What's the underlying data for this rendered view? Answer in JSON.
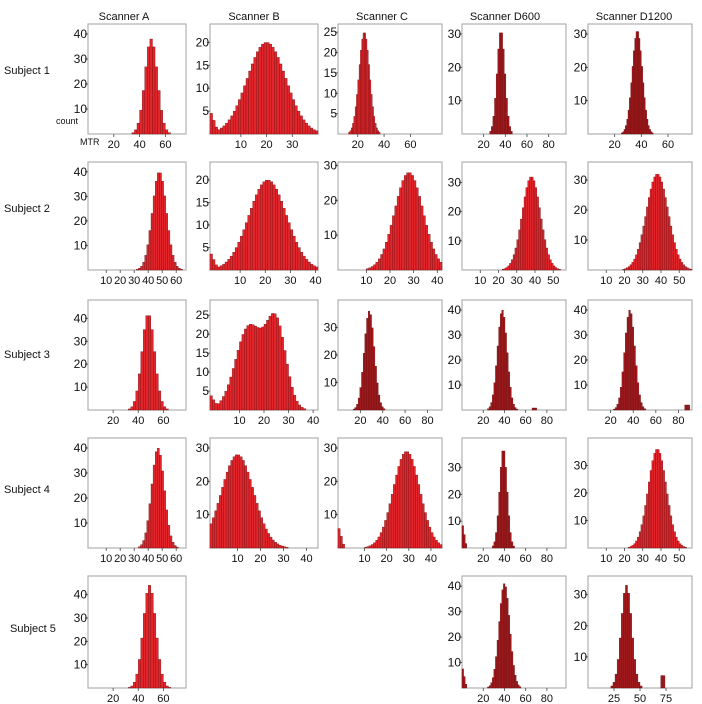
{
  "column_headers": [
    "Scanner   A",
    "Scanner   B",
    "Scanner   C",
    "Scanner    D600",
    "Scanner    D1200"
  ],
  "row_headers": [
    "Subject 1",
    "Subject 2",
    "Subject 3",
    "Subject 4",
    "Subject 5"
  ],
  "axis_words": {
    "x": "MTR",
    "y": "count"
  },
  "colors": {
    "bright_bar": "#e3262b",
    "dark_bar": "#9e1a1d",
    "bar_edge": "#6d0b0e",
    "frame": "#b0b0b0"
  },
  "chart_data": [
    {
      "type": "bar",
      "row": 0,
      "col": 0,
      "bin": 2,
      "xlim": [
        0,
        76
      ],
      "ylim": [
        0,
        44
      ],
      "xticks": [
        20,
        40,
        60
      ],
      "yticks": [
        10,
        20,
        30,
        40
      ],
      "dark": false,
      "peaks": [
        {
          "mu": 49,
          "sd": 4.8,
          "amp": 38
        }
      ],
      "floor": 0
    },
    {
      "type": "bar",
      "row": 0,
      "col": 1,
      "bin": 1,
      "xlim": [
        -2,
        40
      ],
      "ylim": [
        0,
        24
      ],
      "xticks": [
        10,
        20,
        30
      ],
      "yticks": [
        5,
        10,
        15,
        20
      ],
      "dark": false,
      "peaks": [
        {
          "mu": 20,
          "sd": 7.5,
          "amp": 20
        }
      ],
      "floor": 0,
      "lowspike": 5
    },
    {
      "type": "bar",
      "row": 0,
      "col": 2,
      "bin": 1,
      "xlim": [
        5,
        84
      ],
      "ylim": [
        0,
        27
      ],
      "xticks": [
        20,
        40,
        60
      ],
      "yticks": [
        5,
        10,
        15,
        20,
        25
      ],
      "dark": false,
      "peaks": [
        {
          "mu": 25,
          "sd": 4,
          "amp": 25
        }
      ],
      "floor": 0
    },
    {
      "type": "bar",
      "row": 0,
      "col": 3,
      "bin": 1.5,
      "xlim": [
        0,
        96
      ],
      "ylim": [
        0,
        33
      ],
      "xticks": [
        20,
        40,
        60,
        80
      ],
      "yticks": [
        10,
        20,
        30
      ],
      "dark": true,
      "peaks": [
        {
          "mu": 36,
          "sd": 3.6,
          "amp": 31
        }
      ],
      "floor": 0
    },
    {
      "type": "bar",
      "row": 0,
      "col": 4,
      "bin": 1,
      "xlim": [
        0,
        78
      ],
      "ylim": [
        0,
        33
      ],
      "xticks": [
        20,
        40,
        60
      ],
      "yticks": [
        10,
        20,
        30
      ],
      "dark": true,
      "peaks": [
        {
          "mu": 37,
          "sd": 3.8,
          "amp": 31
        }
      ],
      "floor": 0
    },
    {
      "type": "bar",
      "row": 1,
      "col": 0,
      "bin": 1.5,
      "xlim": [
        -3,
        67
      ],
      "ylim": [
        0,
        44
      ],
      "xticks": [
        10,
        20,
        30,
        40,
        50,
        60
      ],
      "yticks": [
        10,
        20,
        30,
        40
      ],
      "dark": false,
      "peaks": [
        {
          "mu": 48,
          "sd": 5,
          "amp": 40
        }
      ],
      "floor": 0
    },
    {
      "type": "bar",
      "row": 1,
      "col": 1,
      "bin": 1,
      "xlim": [
        -2,
        41
      ],
      "ylim": [
        0,
        24
      ],
      "xticks": [
        10,
        20,
        30,
        40
      ],
      "yticks": [
        5,
        10,
        15,
        20
      ],
      "dark": false,
      "peaks": [
        {
          "mu": 21,
          "sd": 7.5,
          "amp": 20
        }
      ],
      "floor": 0,
      "lowspike": 4
    },
    {
      "type": "bar",
      "row": 1,
      "col": 2,
      "bin": 1,
      "xlim": [
        -2,
        42
      ],
      "ylim": [
        0,
        31
      ],
      "xticks": [
        10,
        20,
        30,
        40
      ],
      "yticks": [
        10,
        20,
        30
      ],
      "dark": false,
      "peaks": [
        {
          "mu": 28,
          "sd": 6,
          "amp": 28
        }
      ],
      "floor": 0
    },
    {
      "type": "bar",
      "row": 1,
      "col": 3,
      "bin": 1,
      "xlim": [
        0,
        57
      ],
      "ylim": [
        0,
        37
      ],
      "xticks": [
        10,
        20,
        30,
        40,
        50
      ],
      "yticks": [
        10,
        20,
        30
      ],
      "dark": false,
      "peaks": [
        {
          "mu": 38,
          "sd": 5,
          "amp": 32
        }
      ],
      "floor": 0
    },
    {
      "type": "bar",
      "row": 1,
      "col": 4,
      "bin": 1,
      "xlim": [
        0,
        57
      ],
      "ylim": [
        0,
        36
      ],
      "xticks": [
        10,
        20,
        30,
        40,
        50
      ],
      "yticks": [
        10,
        20,
        30
      ],
      "dark": false,
      "peaks": [
        {
          "mu": 38,
          "sd": 6,
          "amp": 32
        }
      ],
      "floor": 0
    },
    {
      "type": "bar",
      "row": 2,
      "col": 0,
      "bin": 2,
      "xlim": [
        0,
        78
      ],
      "ylim": [
        0,
        48
      ],
      "xticks": [
        20,
        40,
        60
      ],
      "yticks": [
        10,
        20,
        30,
        40
      ],
      "dark": false,
      "peaks": [
        {
          "mu": 48,
          "sd": 5,
          "amp": 42
        }
      ],
      "floor": 0
    },
    {
      "type": "bar",
      "row": 2,
      "col": 1,
      "bin": 1,
      "xlim": [
        -2,
        42
      ],
      "ylim": [
        0,
        29
      ],
      "xticks": [
        10,
        20,
        30,
        40
      ],
      "yticks": [
        5,
        10,
        15,
        20,
        25
      ],
      "dark": false,
      "peaks": [
        {
          "mu": 14,
          "sd": 5.5,
          "amp": 22
        },
        {
          "mu": 25,
          "sd": 4,
          "amp": 22
        }
      ],
      "floor": 0,
      "lowspike": 4
    },
    {
      "type": "bar",
      "row": 2,
      "col": 2,
      "bin": 1.5,
      "xlim": [
        0,
        93
      ],
      "ylim": [
        0,
        40
      ],
      "xticks": [
        20,
        40,
        60,
        80
      ],
      "yticks": [
        10,
        20,
        30
      ],
      "dark": true,
      "peaks": [
        {
          "mu": 28,
          "sd": 4.5,
          "amp": 36
        }
      ],
      "floor": 0
    },
    {
      "type": "bar",
      "row": 2,
      "col": 3,
      "bin": 1.5,
      "xlim": [
        0,
        98
      ],
      "ylim": [
        0,
        44
      ],
      "xticks": [
        20,
        40,
        60,
        80
      ],
      "yticks": [
        10,
        20,
        30,
        40
      ],
      "dark": true,
      "peaks": [
        {
          "mu": 38,
          "sd": 4.5,
          "amp": 40
        }
      ],
      "floor": 0,
      "tail": [
        {
          "x": 68,
          "amp": 0.8
        }
      ]
    },
    {
      "type": "bar",
      "row": 2,
      "col": 4,
      "bin": 1.5,
      "xlim": [
        0,
        92
      ],
      "ylim": [
        0,
        44
      ],
      "xticks": [
        20,
        40,
        60,
        80
      ],
      "yticks": [
        10,
        20,
        30,
        40
      ],
      "dark": true,
      "peaks": [
        {
          "mu": 37,
          "sd": 4.5,
          "amp": 40
        }
      ],
      "floor": 0,
      "tail": [
        {
          "x": 88,
          "amp": 2
        }
      ]
    },
    {
      "type": "bar",
      "row": 3,
      "col": 0,
      "bin": 1.5,
      "xlim": [
        -3,
        67
      ],
      "ylim": [
        0,
        44
      ],
      "xticks": [
        10,
        20,
        30,
        40,
        50,
        60
      ],
      "yticks": [
        10,
        20,
        30,
        40
      ],
      "dark": false,
      "peaks": [
        {
          "mu": 47,
          "sd": 4.5,
          "amp": 40
        }
      ],
      "floor": 0
    },
    {
      "type": "bar",
      "row": 3,
      "col": 1,
      "bin": 1,
      "xlim": [
        -2,
        45
      ],
      "ylim": [
        0,
        33
      ],
      "xticks": [
        10,
        20,
        30,
        40
      ],
      "yticks": [
        10,
        20,
        30
      ],
      "dark": false,
      "peaks": [
        {
          "mu": 10,
          "sd": 7,
          "amp": 28
        }
      ],
      "floor": 0
    },
    {
      "type": "bar",
      "row": 3,
      "col": 2,
      "bin": 1,
      "xlim": [
        -2,
        45
      ],
      "ylim": [
        0,
        33
      ],
      "xticks": [
        10,
        20,
        30,
        40
      ],
      "yticks": [
        10,
        20,
        30
      ],
      "dark": false,
      "peaks": [
        {
          "mu": 29,
          "sd": 6,
          "amp": 29
        }
      ],
      "floor": 0,
      "lowspike": 7
    },
    {
      "type": "bar",
      "row": 3,
      "col": 3,
      "bin": 1.5,
      "xlim": [
        0,
        98
      ],
      "ylim": [
        0,
        41
      ],
      "xticks": [
        20,
        40,
        60,
        80
      ],
      "yticks": [
        10,
        20,
        30
      ],
      "dark": true,
      "peaks": [
        {
          "mu": 39,
          "sd": 3.5,
          "amp": 37
        }
      ],
      "floor": 0,
      "lowspike": 10
    },
    {
      "type": "bar",
      "row": 3,
      "col": 4,
      "bin": 1,
      "xlim": [
        0,
        57
      ],
      "ylim": [
        0,
        40
      ],
      "xticks": [
        10,
        20,
        30,
        40,
        50
      ],
      "yticks": [
        10,
        20,
        30
      ],
      "dark": false,
      "peaks": [
        {
          "mu": 38,
          "sd": 5,
          "amp": 36
        }
      ],
      "floor": 0
    },
    {
      "type": "bar",
      "row": 4,
      "col": 0,
      "bin": 2,
      "xlim": [
        0,
        78
      ],
      "ylim": [
        0,
        48
      ],
      "xticks": [
        20,
        40,
        60
      ],
      "yticks": [
        10,
        20,
        30,
        40
      ],
      "dark": false,
      "peaks": [
        {
          "mu": 49,
          "sd": 5,
          "amp": 44
        }
      ],
      "floor": 0
    },
    {
      "type": "bar",
      "row": 4,
      "col": 3,
      "bin": 1.5,
      "xlim": [
        0,
        98
      ],
      "ylim": [
        0,
        44
      ],
      "xticks": [
        20,
        40,
        60,
        80
      ],
      "yticks": [
        10,
        20,
        30,
        40
      ],
      "dark": true,
      "peaks": [
        {
          "mu": 40,
          "sd": 5,
          "amp": 41
        }
      ],
      "floor": 0,
      "lowspike": 9
    },
    {
      "type": "bar",
      "row": 4,
      "col": 4,
      "bin": 2,
      "xlim": [
        0,
        100
      ],
      "ylim": [
        0,
        36
      ],
      "xticks": [
        25,
        50,
        75
      ],
      "yticks": [
        10,
        20,
        30
      ],
      "dark": true,
      "peaks": [
        {
          "mu": 37,
          "sd": 5,
          "amp": 33
        }
      ],
      "floor": 0,
      "tail": [
        {
          "x": 72,
          "amp": 4
        }
      ]
    }
  ]
}
